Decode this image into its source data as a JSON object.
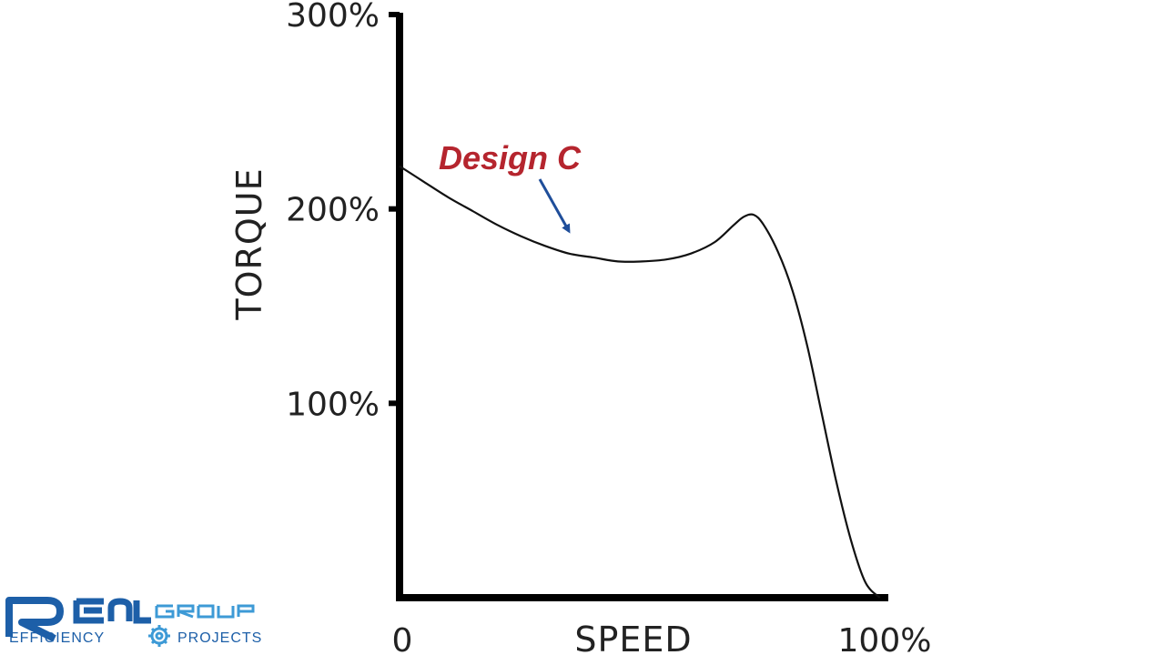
{
  "chart_data": {
    "type": "line",
    "xlabel": "SPEED",
    "ylabel": "TORQUE",
    "xlim": [
      0,
      100
    ],
    "ylim": [
      0,
      300
    ],
    "x_tick_labels": [
      {
        "value": 0,
        "label": "0"
      },
      {
        "value": 100,
        "label": "100%"
      }
    ],
    "y_ticks": [
      {
        "value": 100,
        "label": "100%"
      },
      {
        "value": 200,
        "label": "200%"
      },
      {
        "value": 300,
        "label": "300%"
      }
    ],
    "grid": false,
    "series": [
      {
        "name": "Design C",
        "color": "#111111",
        "points": [
          {
            "x": 0,
            "y": 222
          },
          {
            "x": 5,
            "y": 214
          },
          {
            "x": 10,
            "y": 206
          },
          {
            "x": 15,
            "y": 199
          },
          {
            "x": 20,
            "y": 192
          },
          {
            "x": 25,
            "y": 186
          },
          {
            "x": 30,
            "y": 181
          },
          {
            "x": 35,
            "y": 177
          },
          {
            "x": 40,
            "y": 175
          },
          {
            "x": 45,
            "y": 173
          },
          {
            "x": 50,
            "y": 173
          },
          {
            "x": 55,
            "y": 174
          },
          {
            "x": 60,
            "y": 177
          },
          {
            "x": 65,
            "y": 183
          },
          {
            "x": 69,
            "y": 192
          },
          {
            "x": 71,
            "y": 196
          },
          {
            "x": 73,
            "y": 197
          },
          {
            "x": 75,
            "y": 192
          },
          {
            "x": 78,
            "y": 178
          },
          {
            "x": 81,
            "y": 158
          },
          {
            "x": 84,
            "y": 130
          },
          {
            "x": 87,
            "y": 95
          },
          {
            "x": 90,
            "y": 60
          },
          {
            "x": 93,
            "y": 30
          },
          {
            "x": 96,
            "y": 8
          },
          {
            "x": 99,
            "y": 0
          }
        ]
      }
    ],
    "annotations": [
      {
        "text": "Design C",
        "color": "#b5252e",
        "arrow_color": "#1f4e9a"
      }
    ]
  },
  "logo": {
    "brand": "REAL GROUP",
    "line1": "EFFICIENCY",
    "line2": "PROJECTS",
    "primary_color": "#1d5fa8",
    "secondary_color": "#3d9ad6",
    "icon": "gear-icon"
  }
}
